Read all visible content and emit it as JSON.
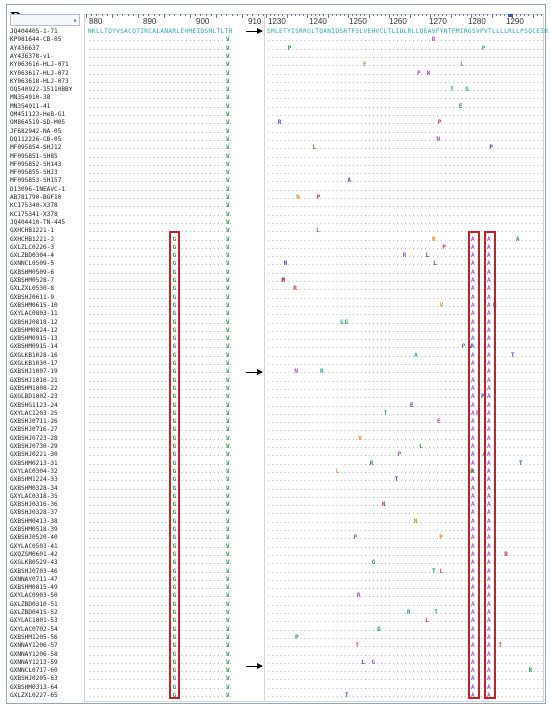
{
  "panel_label": "B",
  "ruler": {
    "left_ticks": [
      "880",
      "890",
      "900",
      "910"
    ],
    "right_ticks": [
      "1230",
      "1240",
      "1250",
      "1260",
      "1270",
      "1280",
      "1290"
    ]
  },
  "consensus": {
    "left": "NKLLTQYVSACQTIRCALANARLEHMEIDSNLTLTH",
    "right": "SMLETYISRRGLTQANIDSRTFSLVEHVCLTLIDLRLLQEAVFYNTPMIRGSVPVTLLLLRLLPSQCEIR"
  },
  "header_cell": "",
  "sequence_names": [
    "JQ404405-1-71",
    "KP981644-CB-05",
    "AY436637",
    "AY436378-v1",
    "KY063616-HLJ-071",
    "KY063617-HLJ-072",
    "KY063618-HLJ-073",
    "OQ540922-15110BBY",
    "MN354910-38",
    "MN354911-41",
    "OM451123-HeB-G1",
    "OM864519-SD-M05",
    "JF682942-NA-05",
    "DQ112226-CB-05",
    "MF095854-SHJ12",
    "MF095851-SH85",
    "MF095852-SH143",
    "MF095855-SHJ3",
    "MF095853-SH157",
    "D13096-INEAVC-1",
    "AB781790-BGF10",
    "KC175340-X378",
    "KC175341-X378",
    "JQ404410-TN-445",
    "GXHCHB1221-1",
    "GXHCHB1221-2",
    "GXLZLC0220-3",
    "GXLZBD0304-4",
    "GXNNCL0509-5",
    "GXBSHM0509-6",
    "GXBSHM0528-7",
    "GXLZXL0530-8",
    "GXBSHJ0611-9",
    "GXBSHM0615-10",
    "GXYLAC0803-11",
    "GXBSHJ0818-12",
    "GXBSHM0824-12",
    "GXBSHM0915-13",
    "GXBSHM0915-14",
    "GXGLKB1028-16",
    "GXGLKB1030-17",
    "GXBSHJ1007-19",
    "GXBSHJ1016-21",
    "GXBSHM1008-22",
    "GXGLBD1002-23",
    "GXBSHG1123-24",
    "GXYLAC1203-25",
    "GXBSHJ0711-26",
    "GXBSHJ0716-27",
    "GXBSHJ0723-28",
    "GXBSHJ0730-29",
    "GXBSHJ0221-30",
    "GXBSHM0213-31",
    "GXYLAC0304-32",
    "GXBSHM1224-33",
    "GXBSHM0328-34",
    "GXYLAC0318-35",
    "GXBSHJ0316-36",
    "GXBSHJ0328-37",
    "GXBSHM0413-38",
    "GXBSHM0518-39",
    "GXBSHJ0520-40",
    "GXYLAC0503-41",
    "GXQZSM0601-42",
    "GXGLKB0529-43",
    "GXBSHJ0703-46",
    "GXNNAY0711-47",
    "GXBSHM0815-49",
    "GXYLAC0903-50",
    "GXLZBD0310-51",
    "GXLZBD0415-52",
    "GXYLAC1001-53",
    "GXYLAC0702-54",
    "GXBSHM1205-56",
    "GXNNAY1206-57",
    "GXNNAY1206-58",
    "GXNNAY1213-59",
    "GXNNCL0717-60",
    "GXBSHJ0205-63",
    "GXBSHM0313-64",
    "GXLZXL0227-65"
  ],
  "colors": {
    "dot": "#9b9b9b",
    "highlight_box": "#cc1f1f",
    "frame": "#cfd6df",
    "residue_blue": "#3b57d9",
    "residue_green": "#2f9a4a",
    "residue_orange": "#e08a2c",
    "residue_red": "#d23a3a",
    "residue_magenta": "#b04ac6",
    "residue_teal": "#2aa6a6"
  },
  "icons": {
    "arrow": "right-arrow-icon",
    "scroll": "chevron-icon"
  }
}
